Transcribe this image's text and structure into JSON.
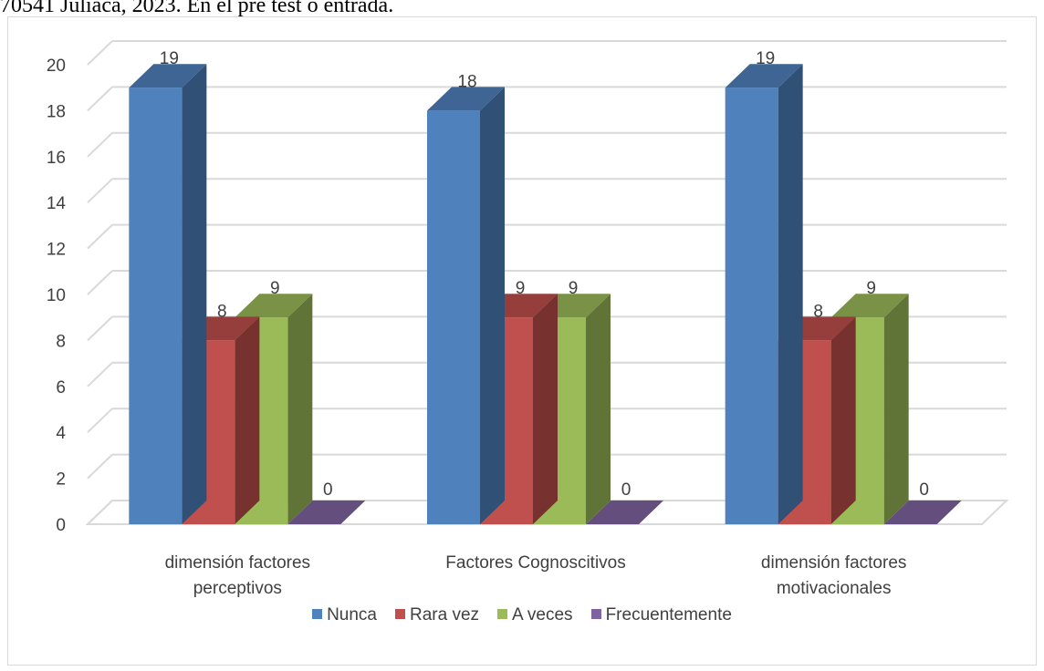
{
  "caption": "70541 Juliaca, 2023. En el pre test o entrada.",
  "chart_data": {
    "type": "bar",
    "style": "3d-clustered-column",
    "categories": [
      [
        "dimensión factores",
        "perceptivos"
      ],
      [
        "Factores Cognoscitivos"
      ],
      [
        "dimensión factores",
        "motivacionales"
      ]
    ],
    "series": [
      {
        "name": "Nunca",
        "values": [
          19,
          18,
          19
        ],
        "color": "#4f81bd"
      },
      {
        "name": "Rara vez",
        "values": [
          8,
          9,
          8
        ],
        "color": "#c0504d"
      },
      {
        "name": "A veces",
        "values": [
          9,
          9,
          9
        ],
        "color": "#9bbb59"
      },
      {
        "name": "Frecuentemente",
        "values": [
          0,
          0,
          0
        ],
        "color": "#8064a2"
      }
    ],
    "ylim": [
      0,
      20
    ],
    "yticks": [
      0,
      2,
      4,
      6,
      8,
      10,
      12,
      14,
      16,
      18,
      20
    ],
    "grid": true,
    "legend": "bottom",
    "data_labels": true
  }
}
